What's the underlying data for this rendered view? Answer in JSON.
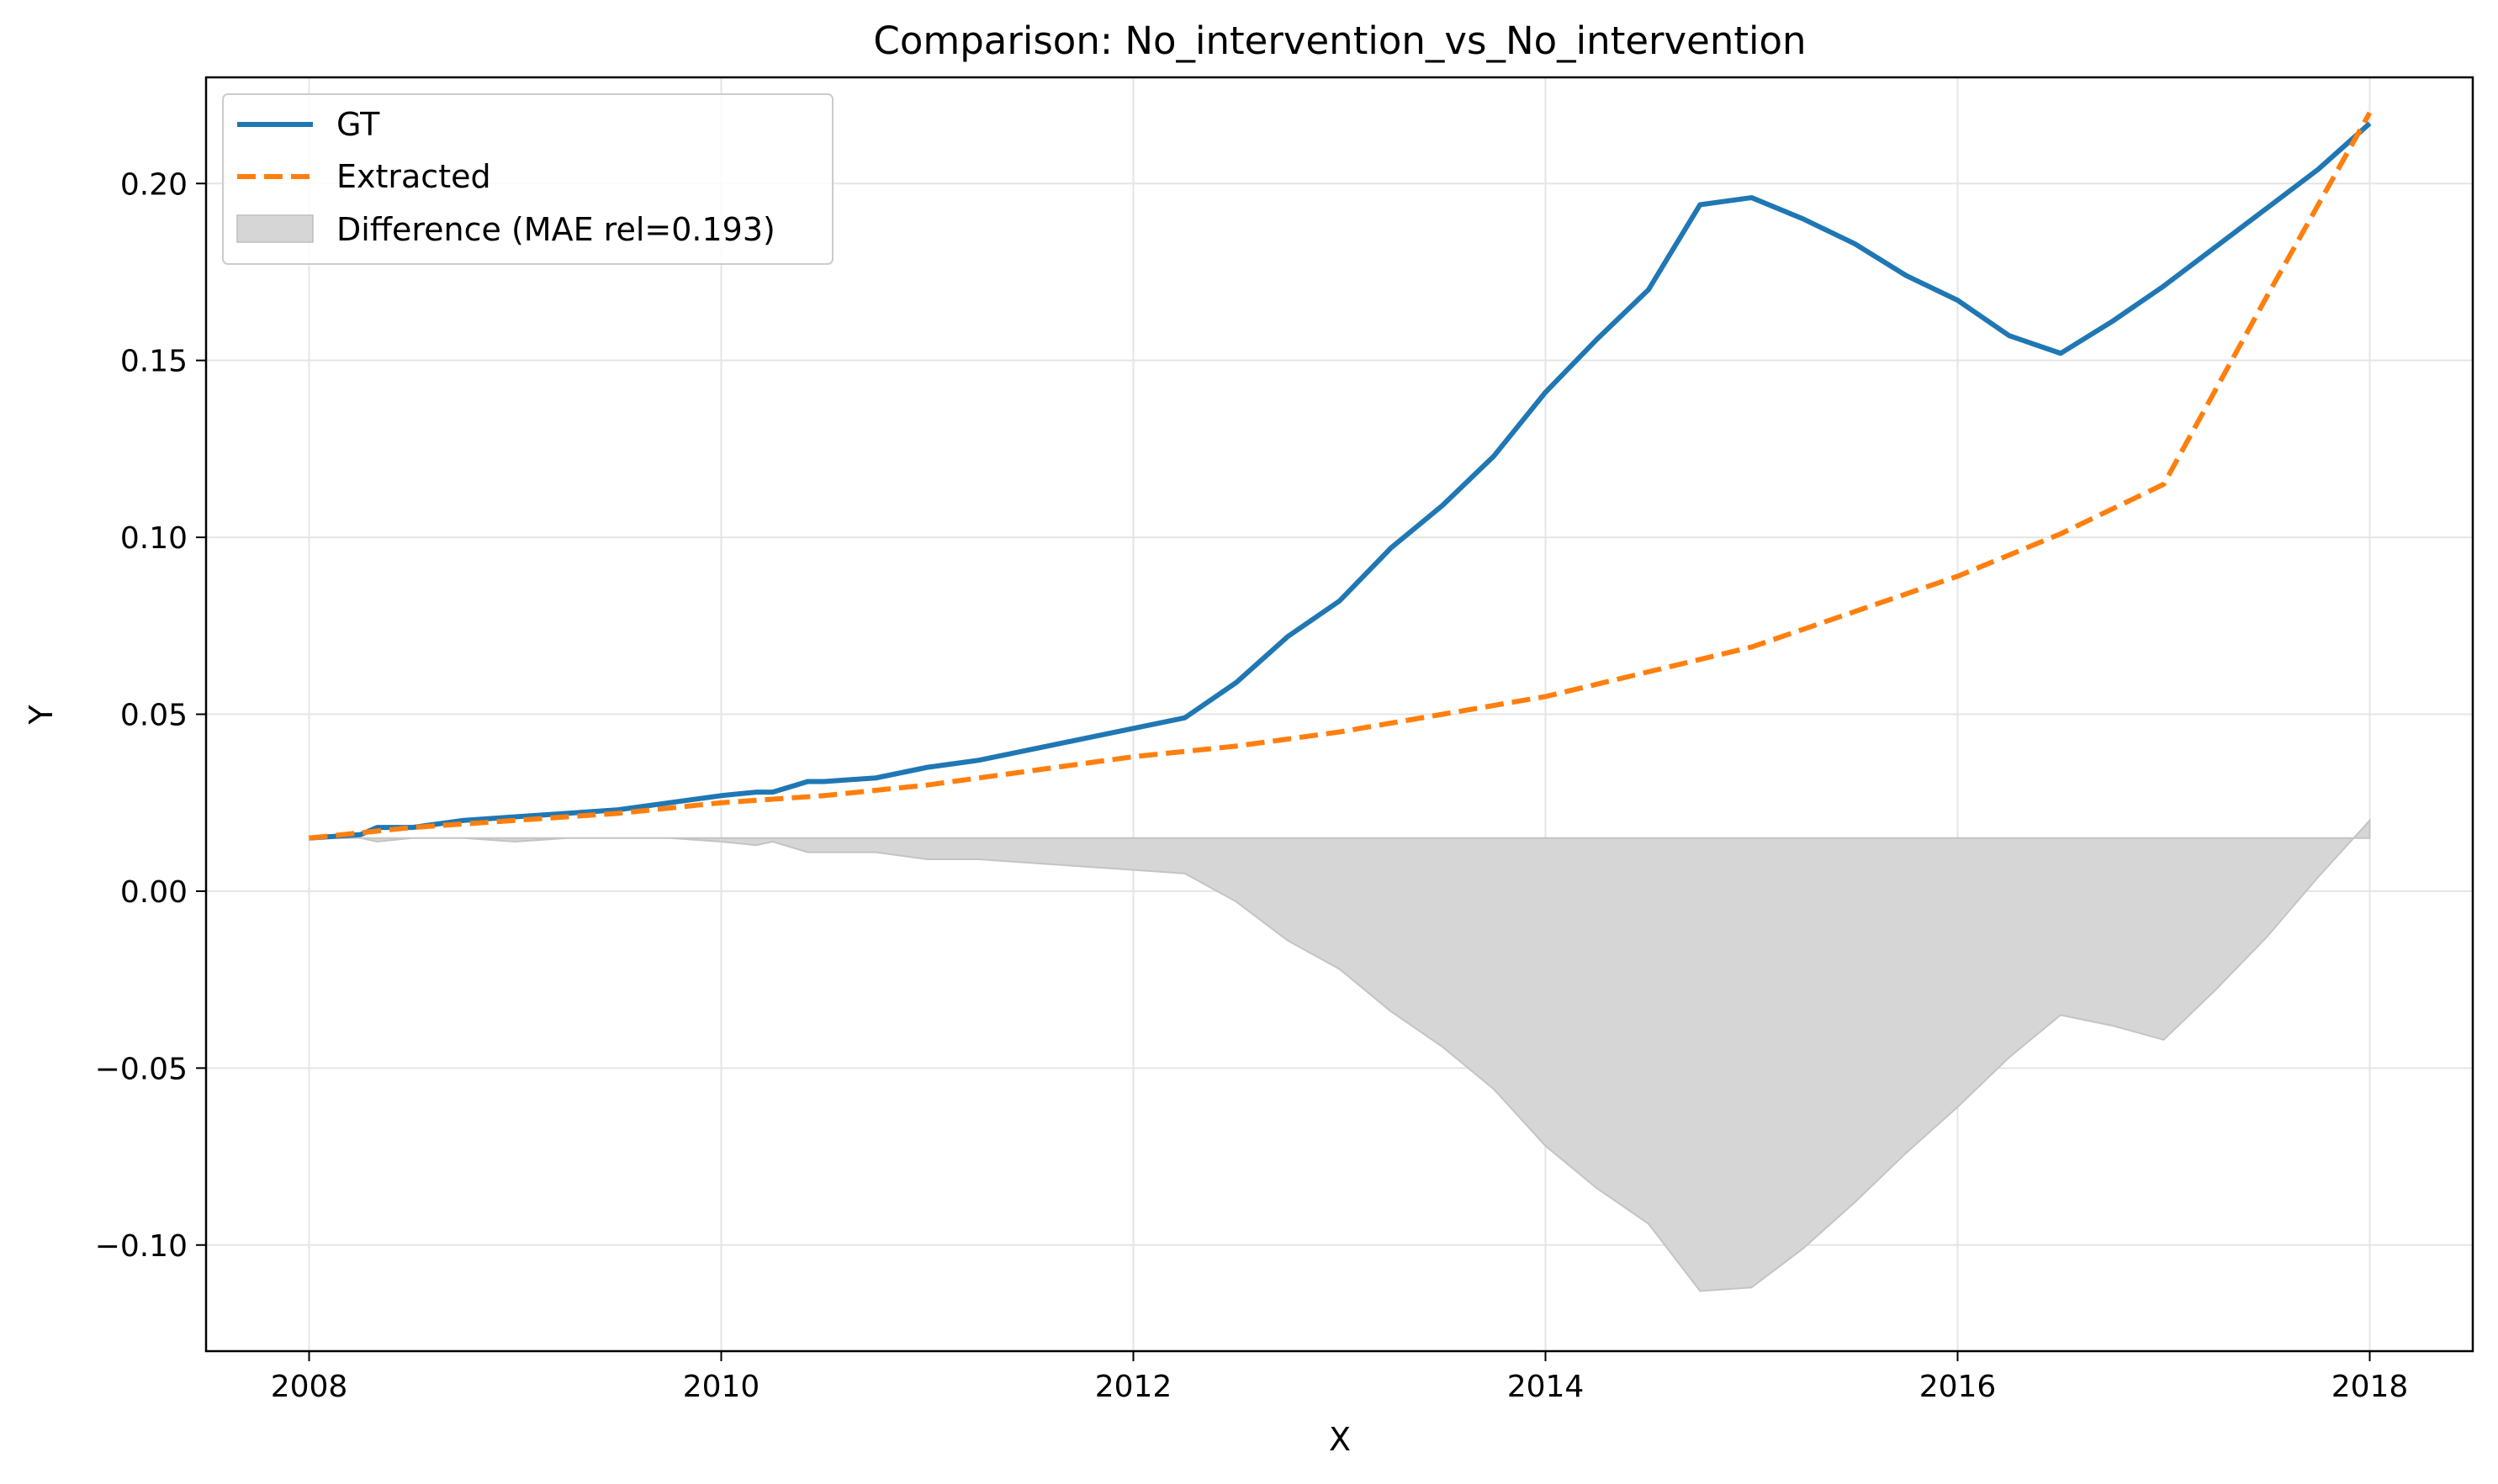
{
  "chart_data": {
    "type": "line",
    "title": "Comparison: No_intervention_vs_No_intervention",
    "xlabel": "X",
    "ylabel": "Y",
    "xlim": [
      2007.5,
      2018.5
    ],
    "ylim": [
      -0.13,
      0.23
    ],
    "xticks": [
      2008,
      2010,
      2012,
      2014,
      2016,
      2018
    ],
    "yticks": [
      -0.1,
      -0.05,
      0.0,
      0.05,
      0.1,
      0.15,
      0.2
    ],
    "ytick_labels": [
      "−0.10",
      "−0.05",
      "0.00",
      "0.05",
      "0.10",
      "0.15",
      "0.20"
    ],
    "grid": true,
    "legend_position": "top-left",
    "series": [
      {
        "name": "GT",
        "style": "solid",
        "color": "#1f77b4",
        "x": [
          2008.0,
          2008.25,
          2008.33,
          2008.5,
          2008.75,
          2009.0,
          2009.25,
          2009.5,
          2009.75,
          2010.0,
          2010.17,
          2010.25,
          2010.42,
          2010.5,
          2010.75,
          2011.0,
          2011.25,
          2011.5,
          2011.75,
          2012.0,
          2012.25,
          2012.5,
          2012.75,
          2013.0,
          2013.25,
          2013.5,
          2013.75,
          2014.0,
          2014.25,
          2014.5,
          2014.75,
          2015.0,
          2015.25,
          2015.5,
          2015.75,
          2016.0,
          2016.25,
          2016.5,
          2016.75,
          2017.0,
          2017.25,
          2017.5,
          2017.75,
          2018.0
        ],
        "y": [
          0.015,
          0.016,
          0.018,
          0.018,
          0.02,
          0.021,
          0.022,
          0.023,
          0.025,
          0.027,
          0.028,
          0.028,
          0.031,
          0.031,
          0.032,
          0.035,
          0.037,
          0.04,
          0.043,
          0.046,
          0.049,
          0.059,
          0.072,
          0.082,
          0.097,
          0.109,
          0.123,
          0.141,
          0.156,
          0.17,
          0.194,
          0.196,
          0.19,
          0.183,
          0.174,
          0.167,
          0.157,
          0.152,
          0.161,
          0.171,
          0.182,
          0.193,
          0.204,
          0.217
        ]
      },
      {
        "name": "Extracted",
        "style": "dashed",
        "color": "#ff7f0e",
        "x": [
          2008.0,
          2008.5,
          2009.0,
          2009.5,
          2010.0,
          2010.5,
          2011.0,
          2011.5,
          2012.0,
          2012.5,
          2013.0,
          2013.5,
          2014.0,
          2014.5,
          2015.0,
          2015.5,
          2016.0,
          2016.5,
          2017.0,
          2017.5,
          2018.0
        ],
        "y": [
          0.015,
          0.018,
          0.02,
          0.022,
          0.025,
          0.027,
          0.03,
          0.034,
          0.038,
          0.041,
          0.045,
          0.05,
          0.055,
          0.062,
          0.069,
          0.079,
          0.089,
          0.101,
          0.115,
          0.168,
          0.22
        ]
      }
    ],
    "difference": {
      "name": "Difference (MAE rel=0.193)",
      "color": "#d6d6d6",
      "baseline": 0.015,
      "x": [
        2008.0,
        2008.25,
        2008.33,
        2008.5,
        2008.75,
        2009.0,
        2009.25,
        2009.5,
        2009.75,
        2010.0,
        2010.17,
        2010.25,
        2010.42,
        2010.5,
        2010.75,
        2011.0,
        2011.25,
        2011.5,
        2011.75,
        2012.0,
        2012.25,
        2012.5,
        2012.75,
        2013.0,
        2013.25,
        2013.5,
        2013.75,
        2014.0,
        2014.25,
        2014.5,
        2014.75,
        2015.0,
        2015.25,
        2015.5,
        2015.75,
        2016.0,
        2016.25,
        2016.5,
        2016.75,
        2017.0,
        2017.25,
        2017.5,
        2017.75,
        2018.0
      ],
      "y": [
        0.015,
        0.015,
        0.014,
        0.015,
        0.015,
        0.014,
        0.015,
        0.015,
        0.015,
        0.014,
        0.013,
        0.014,
        0.011,
        0.011,
        0.011,
        0.009,
        0.009,
        0.008,
        0.007,
        0.006,
        0.005,
        -0.003,
        -0.014,
        -0.022,
        -0.034,
        -0.044,
        -0.056,
        -0.072,
        -0.084,
        -0.094,
        -0.113,
        -0.112,
        -0.101,
        -0.088,
        -0.074,
        -0.061,
        -0.047,
        -0.035,
        -0.038,
        -0.042,
        -0.028,
        -0.013,
        0.004,
        0.02
      ]
    }
  }
}
